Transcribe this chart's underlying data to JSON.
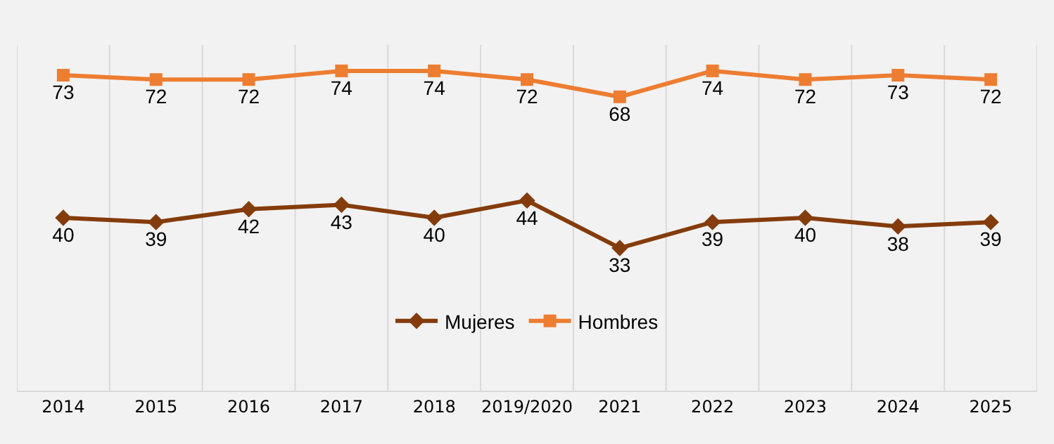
{
  "chart_data": {
    "type": "line",
    "categories": [
      "2014",
      "2015",
      "2016",
      "2017",
      "2018",
      "2019/2020",
      "2021",
      "2022",
      "2023",
      "2024",
      "2025"
    ],
    "series": [
      {
        "name": "Mujeres",
        "color": "#843c0c",
        "marker": "diamond",
        "values": [
          40,
          39,
          42,
          43,
          40,
          44,
          33,
          39,
          40,
          38,
          39
        ]
      },
      {
        "name": "Hombres",
        "color": "#ed7d31",
        "marker": "square",
        "values": [
          73,
          72,
          72,
          74,
          74,
          72,
          68,
          74,
          72,
          73,
          72
        ]
      }
    ],
    "ylim": [
      0,
      80
    ],
    "data_labels": true,
    "grid": "x",
    "legend": "bottom",
    "tick_labels": "x"
  }
}
